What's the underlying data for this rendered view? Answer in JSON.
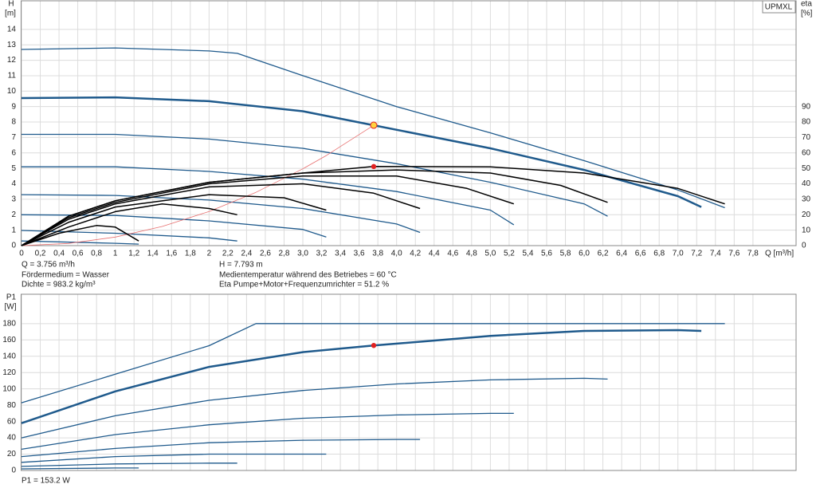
{
  "chart_data": [
    {
      "type": "line",
      "ylabel": "H",
      "yunit": "[m]",
      "y2label": "eta",
      "y2unit": "[%]",
      "xlabel": "Q [m³/h]",
      "badge": "UPMXL",
      "xlim": [
        0,
        8.26
      ],
      "ylim": [
        0,
        15.85
      ],
      "y2lim": [
        0,
        158.5
      ],
      "grid": true,
      "xticks": [
        0,
        {
          "value": 0.2,
          "label": "0,2"
        },
        {
          "value": 0.4,
          "label": "0,4"
        },
        {
          "value": 0.6,
          "label": "0,6"
        },
        {
          "value": 0.8,
          "label": "0,8"
        },
        1,
        {
          "value": 1.2,
          "label": "1,2"
        },
        {
          "value": 1.4,
          "label": "1,4"
        },
        {
          "value": 1.6,
          "label": "1,6"
        },
        {
          "value": 1.8,
          "label": "1,8"
        },
        2,
        {
          "value": 2.2,
          "label": "2,2"
        },
        {
          "value": 2.4,
          "label": "2,4"
        },
        {
          "value": 2.6,
          "label": "2,6"
        },
        {
          "value": 2.8,
          "label": "2,8"
        },
        {
          "value": 3,
          "label": "3,0"
        },
        {
          "value": 3.2,
          "label": "3,2"
        },
        {
          "value": 3.4,
          "label": "3,4"
        },
        {
          "value": 3.6,
          "label": "3,6"
        },
        {
          "value": 3.8,
          "label": "3,8"
        },
        {
          "value": 4,
          "label": "4,0"
        },
        {
          "value": 4.2,
          "label": "4,2"
        },
        {
          "value": 4.4,
          "label": "4,4"
        },
        {
          "value": 4.6,
          "label": "4,6"
        },
        {
          "value": 4.8,
          "label": "4,8"
        },
        {
          "value": 5,
          "label": "5,0"
        },
        {
          "value": 5.2,
          "label": "5,2"
        },
        {
          "value": 5.4,
          "label": "5,4"
        },
        {
          "value": 5.6,
          "label": "5,6"
        },
        {
          "value": 5.8,
          "label": "5,8"
        },
        {
          "value": 6,
          "label": "6,0"
        },
        {
          "value": 6.2,
          "label": "6,2"
        },
        {
          "value": 6.4,
          "label": "6,4"
        },
        {
          "value": 6.6,
          "label": "6,6"
        },
        {
          "value": 6.8,
          "label": "6,8"
        },
        {
          "value": 7,
          "label": "7,0"
        },
        {
          "value": 7.2,
          "label": "7,2"
        },
        {
          "value": 7.4,
          "label": "7,4"
        },
        {
          "value": 7.6,
          "label": "7,6"
        },
        {
          "value": 7.8,
          "label": "7,8"
        }
      ],
      "yticks": [
        0,
        1,
        2,
        3,
        4,
        5,
        6,
        7,
        8,
        9,
        10,
        11,
        12,
        13,
        14
      ],
      "y2ticks": [
        0,
        10,
        20,
        30,
        40,
        50,
        60,
        70,
        80,
        90
      ],
      "series": [
        {
          "color": "#1f5a8c",
          "width": 1.3,
          "x": [
            0,
            1,
            2,
            2.3,
            3,
            4,
            5,
            6,
            7,
            7.5
          ],
          "values": [
            12.7,
            12.8,
            12.6,
            12.45,
            11.0,
            9.0,
            7.3,
            5.5,
            3.6,
            2.45
          ]
        },
        {
          "color": "#1f5a8c",
          "width": 2.5,
          "x": [
            0,
            1,
            2,
            3,
            3.756,
            5,
            6,
            7,
            7.25
          ],
          "values": [
            9.55,
            9.6,
            9.35,
            8.7,
            7.793,
            6.3,
            4.9,
            3.2,
            2.5
          ]
        },
        {
          "color": "#1f5a8c",
          "width": 1.3,
          "x": [
            0,
            1,
            2,
            3,
            4,
            5,
            6,
            6.25
          ],
          "values": [
            7.2,
            7.2,
            6.9,
            6.3,
            5.3,
            4.1,
            2.7,
            1.9
          ]
        },
        {
          "color": "#1f5a8c",
          "width": 1.3,
          "x": [
            0,
            1,
            2,
            3,
            4,
            5,
            5.25
          ],
          "values": [
            5.1,
            5.1,
            4.8,
            4.3,
            3.5,
            2.3,
            1.35
          ]
        },
        {
          "color": "#1f5a8c",
          "width": 1.3,
          "x": [
            0,
            1,
            2,
            3,
            4,
            4.25
          ],
          "values": [
            3.3,
            3.25,
            2.95,
            2.4,
            1.4,
            0.85
          ]
        },
        {
          "color": "#1f5a8c",
          "width": 1.3,
          "x": [
            0,
            1,
            2,
            3,
            3.25
          ],
          "values": [
            2.0,
            1.95,
            1.6,
            1.05,
            0.55
          ]
        },
        {
          "color": "#1f5a8c",
          "width": 1.3,
          "x": [
            0,
            1,
            2,
            2.3
          ],
          "values": [
            0.98,
            0.8,
            0.5,
            0.3
          ]
        },
        {
          "color": "#1f5a8c",
          "width": 1.3,
          "x": [
            0,
            1,
            1.25
          ],
          "values": [
            0.3,
            0.15,
            0.1
          ]
        },
        {
          "color": "#e87070",
          "width": 0.8,
          "x": [
            0,
            0.5,
            1,
            1.5,
            2,
            2.5,
            3,
            3.25,
            3.756
          ],
          "values": [
            0,
            0.14,
            0.55,
            1.24,
            2.21,
            3.45,
            4.97,
            5.83,
            7.793
          ]
        },
        {
          "color": "#000000",
          "width": 1.5,
          "axis": "y2",
          "x": [
            0,
            0.5,
            1,
            2,
            3,
            3.756,
            5,
            6,
            7,
            7.5
          ],
          "values": [
            0,
            19,
            29,
            41,
            47,
            51.2,
            51,
            47,
            37,
            27
          ]
        },
        {
          "color": "#000000",
          "width": 1.5,
          "axis": "y2",
          "x": [
            0,
            0.5,
            1,
            2,
            3,
            4,
            5,
            5.75,
            6.25
          ],
          "values": [
            0,
            19,
            29,
            41,
            47,
            49,
            47,
            39,
            28
          ]
        },
        {
          "color": "#000000",
          "width": 1.5,
          "axis": "y2",
          "x": [
            0,
            0.5,
            1,
            2,
            3,
            4,
            4.75,
            5.25
          ],
          "values": [
            0,
            18,
            28,
            40,
            45,
            45,
            37,
            27
          ]
        },
        {
          "color": "#000000",
          "width": 1.5,
          "axis": "y2",
          "x": [
            0,
            0.5,
            1,
            2,
            3,
            3.75,
            4.25
          ],
          "values": [
            0,
            17,
            27,
            38,
            40,
            34,
            24
          ]
        },
        {
          "color": "#000000",
          "width": 1.5,
          "axis": "y2",
          "x": [
            0,
            0.5,
            1,
            2,
            2.8,
            3.25
          ],
          "values": [
            0,
            15,
            25,
            33,
            31,
            23
          ]
        },
        {
          "color": "#000000",
          "width": 1.5,
          "axis": "y2",
          "x": [
            0,
            0.5,
            1,
            1.5,
            2,
            2.3
          ],
          "values": [
            0,
            12,
            22,
            27,
            24,
            20
          ]
        },
        {
          "color": "#000000",
          "width": 1.5,
          "axis": "y2",
          "x": [
            0,
            0.4,
            0.8,
            1,
            1.25
          ],
          "values": [
            0,
            8,
            13,
            12,
            3
          ]
        }
      ],
      "points": [
        {
          "x": 3.756,
          "value": 7.793,
          "color": "#ffd23f"
        },
        {
          "x": 3.756,
          "value": 51.2,
          "color": "#e02020",
          "axis": "y2"
        }
      ],
      "annotations": [
        "Q = 3.756 m³/h",
        "Fördermedium = Wasser",
        "Dichte = 983.2 kg/m³",
        "H = 7.793 m",
        "Medientemperatur während des Betriebes = 60 °C",
        "Eta Pumpe+Motor+Frequenzumrichter = 51.2 %"
      ]
    },
    {
      "type": "line",
      "ylabel": "P1",
      "yunit": "[W]",
      "xlim": [
        0,
        8.26
      ],
      "ylim": [
        0,
        216
      ],
      "grid": true,
      "yticks": [
        0,
        20,
        40,
        60,
        80,
        100,
        120,
        140,
        160,
        180
      ],
      "series": [
        {
          "color": "#1f5a8c",
          "width": 1.3,
          "x": [
            0,
            1,
            2,
            2.5,
            7.5
          ],
          "values": [
            83,
            118,
            153,
            180,
            180
          ]
        },
        {
          "color": "#1f5a8c",
          "width": 2.5,
          "x": [
            0,
            1,
            2,
            3,
            3.756,
            5,
            6,
            7,
            7.25
          ],
          "values": [
            58,
            97,
            127,
            145,
            153.2,
            165,
            171,
            172,
            171
          ]
        },
        {
          "color": "#1f5a8c",
          "width": 1.3,
          "x": [
            0,
            1,
            2,
            3,
            4,
            5,
            6,
            6.25
          ],
          "values": [
            40,
            67,
            86,
            98,
            106,
            111,
            113,
            112
          ]
        },
        {
          "color": "#1f5a8c",
          "width": 1.3,
          "x": [
            0,
            1,
            2,
            3,
            4,
            5,
            5.25
          ],
          "values": [
            26,
            44,
            56,
            64,
            68,
            70,
            70
          ]
        },
        {
          "color": "#1f5a8c",
          "width": 1.3,
          "x": [
            0,
            1,
            2,
            3,
            4,
            4.25
          ],
          "values": [
            17,
            27,
            34,
            37,
            38,
            38
          ]
        },
        {
          "color": "#1f5a8c",
          "width": 1.3,
          "x": [
            0,
            1,
            2,
            3,
            3.25
          ],
          "values": [
            10,
            17,
            20,
            20,
            20
          ]
        },
        {
          "color": "#1f5a8c",
          "width": 1.3,
          "x": [
            0,
            1,
            2,
            2.3
          ],
          "values": [
            5,
            8,
            9,
            9
          ]
        },
        {
          "color": "#1f5a8c",
          "width": 1.3,
          "x": [
            0,
            1,
            1.25
          ],
          "values": [
            2,
            3,
            3
          ]
        }
      ],
      "points": [
        {
          "x": 3.756,
          "value": 153.2,
          "color": "#e02020"
        }
      ],
      "annotations": [
        "P1 = 153.2 W"
      ]
    }
  ]
}
